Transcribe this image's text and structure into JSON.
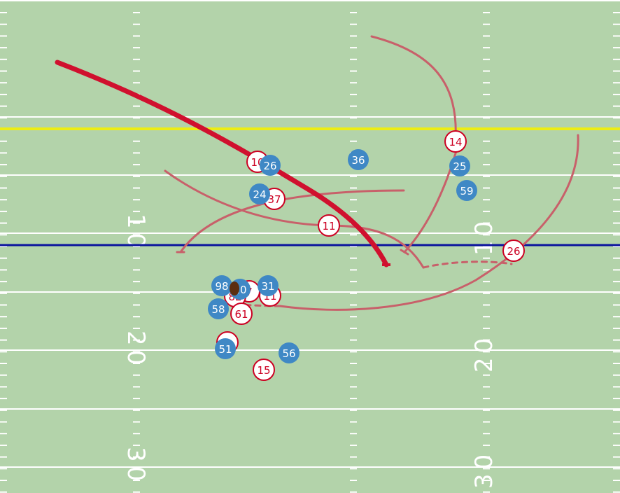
{
  "colors": {
    "turf": "#b3d3aa",
    "line_of_scrimmage": "#0b139e",
    "first_down": "#eded12",
    "offense_ring": "#cc0022",
    "defense": "#3f88c5",
    "route": "#c8606a",
    "highlight_route": "#d0102e",
    "ball": "#5c2e10"
  },
  "yard_numbers": [
    {
      "id": "num-left-10",
      "text": "10"
    },
    {
      "id": "num-right-10",
      "text": "10"
    },
    {
      "id": "num-left-20",
      "text": "20"
    },
    {
      "id": "num-right-20",
      "text": "20"
    },
    {
      "id": "num-left-30",
      "text": "30"
    },
    {
      "id": "num-right-30",
      "text": "30"
    }
  ],
  "offense": [
    "10",
    "37",
    "11",
    "14",
    "26",
    "7",
    "82",
    "11",
    "61",
    "5",
    "15"
  ],
  "defense": [
    "26",
    "36",
    "25",
    "59",
    "24",
    "98",
    "20",
    "31",
    "58",
    "51",
    "56"
  ],
  "ball_icon": "football-icon"
}
